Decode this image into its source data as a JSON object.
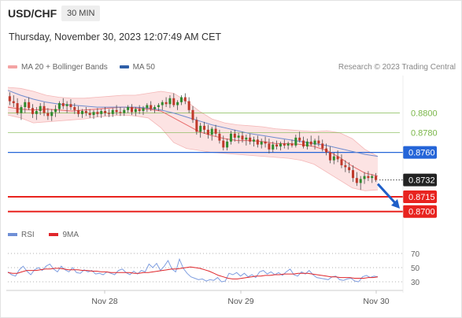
{
  "header": {
    "symbol": "USD/CHF",
    "timeframe": "30 MIN",
    "timestamp": "Thursday, November 30, 2023 12:07:49 AM CET"
  },
  "legend": {
    "items": [
      {
        "label": "MA 20 + Bollinger Bands",
        "color": "#f4a3a3"
      },
      {
        "label": "MA 50",
        "color": "#2f5fa8"
      }
    ],
    "credit": "Research © 2023 Trading Central"
  },
  "rsi_legend": {
    "items": [
      {
        "label": "RSI",
        "color": "#6f8fd6"
      },
      {
        "label": "9MA",
        "color": "#e0262b"
      }
    ]
  },
  "colors": {
    "up": "#2e8b2e",
    "down": "#c0392b",
    "wick": "#4a4a4a",
    "support": "#e8231f",
    "resistance_blue": "#2565d8",
    "resistance_green": "#7ab648",
    "current": "#222222",
    "bb_fill": "#fbdada",
    "bb_edge": "#f4b7b7",
    "ma20": "#e86b6b",
    "ma50": "#6e8ccf",
    "rsi": "#7f9ee0",
    "rsi_ma": "#e0262b",
    "arrow": "#1f5fc8",
    "grid": "#e9e9e9"
  },
  "chart_data": [
    {
      "type": "candlestick",
      "title": "USD/CHF",
      "ylim": [
        0.8683,
        0.8838
      ],
      "x_ticks": [
        "Nov 28",
        "Nov 29",
        "Nov 30"
      ],
      "levels": [
        {
          "value": 0.88,
          "label": "0.8800",
          "kind": "resistance",
          "color": "#7ab648"
        },
        {
          "value": 0.878,
          "label": "0.8780",
          "kind": "resistance",
          "color": "#7ab648"
        },
        {
          "value": 0.876,
          "label": "0.8760",
          "kind": "pivot",
          "color": "#2565d8"
        },
        {
          "value": 0.8732,
          "label": "0.8732",
          "kind": "current",
          "color": "#222222"
        },
        {
          "value": 0.8715,
          "label": "0.8715",
          "kind": "support",
          "color": "#e8231f"
        },
        {
          "value": 0.87,
          "label": "0.8700",
          "kind": "support",
          "color": "#e8231f"
        }
      ],
      "candles": [
        [
          0.8817,
          0.8821,
          0.8808,
          0.8812
        ],
        [
          0.8812,
          0.8818,
          0.8806,
          0.881
        ],
        [
          0.881,
          0.8815,
          0.8798,
          0.88
        ],
        [
          0.88,
          0.8808,
          0.8793,
          0.8806
        ],
        [
          0.8806,
          0.8814,
          0.88,
          0.8811
        ],
        [
          0.8811,
          0.8816,
          0.8803,
          0.8805
        ],
        [
          0.8805,
          0.8809,
          0.8795,
          0.8799
        ],
        [
          0.8799,
          0.8806,
          0.8793,
          0.8802
        ],
        [
          0.8802,
          0.881,
          0.8798,
          0.8807
        ],
        [
          0.8807,
          0.8811,
          0.8797,
          0.88
        ],
        [
          0.88,
          0.8805,
          0.8793,
          0.8797
        ],
        [
          0.8797,
          0.8804,
          0.8792,
          0.8801
        ],
        [
          0.8801,
          0.8808,
          0.8796,
          0.8804
        ],
        [
          0.8804,
          0.8812,
          0.88,
          0.881
        ],
        [
          0.881,
          0.8815,
          0.8804,
          0.8807
        ],
        [
          0.8807,
          0.8812,
          0.88,
          0.8809
        ],
        [
          0.8809,
          0.8814,
          0.8803,
          0.8806
        ],
        [
          0.8806,
          0.881,
          0.8799,
          0.8803
        ],
        [
          0.8803,
          0.8807,
          0.8796,
          0.8799
        ],
        [
          0.8799,
          0.8804,
          0.8795,
          0.8802
        ],
        [
          0.8802,
          0.8806,
          0.8797,
          0.88
        ],
        [
          0.88,
          0.8804,
          0.8795,
          0.8798
        ],
        [
          0.8798,
          0.8803,
          0.8794,
          0.8801
        ],
        [
          0.8801,
          0.8805,
          0.8796,
          0.8799
        ],
        [
          0.8799,
          0.8804,
          0.8795,
          0.8802
        ],
        [
          0.8802,
          0.8806,
          0.8797,
          0.88
        ],
        [
          0.88,
          0.8804,
          0.8796,
          0.8799
        ],
        [
          0.8799,
          0.8805,
          0.8796,
          0.8803
        ],
        [
          0.8803,
          0.8808,
          0.8798,
          0.8801
        ],
        [
          0.8801,
          0.8806,
          0.8797,
          0.88
        ],
        [
          0.88,
          0.8805,
          0.8797,
          0.8803
        ],
        [
          0.8803,
          0.8808,
          0.88,
          0.8806
        ],
        [
          0.8806,
          0.8809,
          0.8798,
          0.8801
        ],
        [
          0.8801,
          0.8806,
          0.8797,
          0.8804
        ],
        [
          0.8804,
          0.8808,
          0.8799,
          0.8802
        ],
        [
          0.8802,
          0.8807,
          0.8798,
          0.8805
        ],
        [
          0.8805,
          0.881,
          0.8801,
          0.8808
        ],
        [
          0.8808,
          0.8812,
          0.8802,
          0.8804
        ],
        [
          0.8804,
          0.8808,
          0.88,
          0.8806
        ],
        [
          0.8806,
          0.881,
          0.8802,
          0.8808
        ],
        [
          0.8808,
          0.8813,
          0.8803,
          0.8811
        ],
        [
          0.8811,
          0.8816,
          0.8806,
          0.8809
        ],
        [
          0.8809,
          0.8818,
          0.8805,
          0.8815
        ],
        [
          0.8815,
          0.882,
          0.8806,
          0.8808
        ],
        [
          0.8808,
          0.8813,
          0.8803,
          0.8811
        ],
        [
          0.8811,
          0.8818,
          0.8808,
          0.8816
        ],
        [
          0.8816,
          0.882,
          0.8809,
          0.8812
        ],
        [
          0.8812,
          0.8816,
          0.88,
          0.8803
        ],
        [
          0.8803,
          0.8807,
          0.879,
          0.8793
        ],
        [
          0.8793,
          0.8796,
          0.8778,
          0.8781
        ],
        [
          0.8781,
          0.879,
          0.8775,
          0.8787
        ],
        [
          0.8787,
          0.8791,
          0.8779,
          0.8783
        ],
        [
          0.8783,
          0.8788,
          0.8774,
          0.8778
        ],
        [
          0.8778,
          0.8786,
          0.8772,
          0.8784
        ],
        [
          0.8784,
          0.8788,
          0.8776,
          0.8779
        ],
        [
          0.8779,
          0.8783,
          0.8769,
          0.8772
        ],
        [
          0.8772,
          0.8777,
          0.8762,
          0.8765
        ],
        [
          0.8765,
          0.8774,
          0.8762,
          0.8771
        ],
        [
          0.8771,
          0.8782,
          0.8768,
          0.8779
        ],
        [
          0.8779,
          0.8783,
          0.8771,
          0.8775
        ],
        [
          0.8775,
          0.878,
          0.8769,
          0.8777
        ],
        [
          0.8777,
          0.8781,
          0.877,
          0.8773
        ],
        [
          0.8773,
          0.8778,
          0.8767,
          0.8775
        ],
        [
          0.8775,
          0.8779,
          0.8768,
          0.8771
        ],
        [
          0.8771,
          0.8776,
          0.8766,
          0.8773
        ],
        [
          0.8773,
          0.8777,
          0.8765,
          0.8768
        ],
        [
          0.8768,
          0.8774,
          0.8764,
          0.8771
        ],
        [
          0.8771,
          0.8776,
          0.8765,
          0.8769
        ],
        [
          0.8769,
          0.8774,
          0.8759,
          0.8763
        ],
        [
          0.8763,
          0.8771,
          0.876,
          0.8768
        ],
        [
          0.8768,
          0.8772,
          0.8763,
          0.8766
        ],
        [
          0.8766,
          0.8771,
          0.8762,
          0.8769
        ],
        [
          0.8769,
          0.8773,
          0.8764,
          0.8767
        ],
        [
          0.8767,
          0.8771,
          0.8763,
          0.8769
        ],
        [
          0.8769,
          0.8773,
          0.8765,
          0.8767
        ],
        [
          0.8767,
          0.8778,
          0.8765,
          0.8775
        ],
        [
          0.8775,
          0.8781,
          0.877,
          0.8772
        ],
        [
          0.8772,
          0.8776,
          0.8764,
          0.8766
        ],
        [
          0.8766,
          0.8774,
          0.8763,
          0.8771
        ],
        [
          0.8771,
          0.8777,
          0.8766,
          0.8768
        ],
        [
          0.8768,
          0.8774,
          0.8763,
          0.8772
        ],
        [
          0.8772,
          0.8777,
          0.8766,
          0.8769
        ],
        [
          0.8769,
          0.8773,
          0.8761,
          0.8764
        ],
        [
          0.8764,
          0.8769,
          0.8757,
          0.876
        ],
        [
          0.876,
          0.8766,
          0.8749,
          0.8752
        ],
        [
          0.8752,
          0.876,
          0.8748,
          0.8756
        ],
        [
          0.8756,
          0.8762,
          0.875,
          0.8753
        ],
        [
          0.8753,
          0.8758,
          0.8744,
          0.8747
        ],
        [
          0.8747,
          0.8752,
          0.874,
          0.8745
        ],
        [
          0.8745,
          0.875,
          0.8739,
          0.8742
        ],
        [
          0.8742,
          0.8747,
          0.873,
          0.8734
        ],
        [
          0.8734,
          0.874,
          0.8726,
          0.8729
        ],
        [
          0.8729,
          0.8736,
          0.8722,
          0.8733
        ],
        [
          0.8733,
          0.874,
          0.8728,
          0.8736
        ],
        [
          0.8736,
          0.8741,
          0.8731,
          0.8734
        ],
        [
          0.8734,
          0.8738,
          0.8729,
          0.8736
        ],
        [
          0.8736,
          0.8739,
          0.873,
          0.8732
        ]
      ],
      "ma20": [
        0.8806,
        0.8804,
        0.8803,
        0.8804,
        0.8803,
        0.8802,
        0.8803,
        0.8804,
        0.8805,
        0.8806,
        0.8805,
        0.8804,
        0.8802,
        0.8795,
        0.8788,
        0.8781,
        0.8777,
        0.8774,
        0.8772,
        0.8772,
        0.8771,
        0.8769,
        0.8769,
        0.8768,
        0.8766,
        0.8762,
        0.8755,
        0.8746,
        0.8739,
        0.8736
      ],
      "ma50": [
        0.8823,
        0.8818,
        0.8814,
        0.8811,
        0.8809,
        0.8808,
        0.8807,
        0.8806,
        0.8806,
        0.8806,
        0.8806,
        0.8805,
        0.8803,
        0.88,
        0.8796,
        0.8792,
        0.8788,
        0.8785,
        0.8782,
        0.8779,
        0.8777,
        0.8775,
        0.8773,
        0.8771,
        0.8769,
        0.8767,
        0.8764,
        0.8761,
        0.8758,
        0.8756
      ],
      "bb_upper": [
        0.8826,
        0.8825,
        0.8822,
        0.8818,
        0.8816,
        0.8815,
        0.8815,
        0.8816,
        0.8817,
        0.8818,
        0.8818,
        0.882,
        0.8822,
        0.882,
        0.8812,
        0.8802,
        0.8794,
        0.879,
        0.8788,
        0.8787,
        0.8786,
        0.8784,
        0.8783,
        0.8782,
        0.8781,
        0.8782,
        0.878,
        0.8774,
        0.8763,
        0.8756
      ],
      "bb_lower": [
        0.8798,
        0.8795,
        0.879,
        0.8791,
        0.8792,
        0.8793,
        0.8794,
        0.8796,
        0.8797,
        0.8798,
        0.8797,
        0.8795,
        0.8785,
        0.877,
        0.8764,
        0.8762,
        0.876,
        0.8759,
        0.8758,
        0.8757,
        0.8756,
        0.8755,
        0.8754,
        0.8752,
        0.8748,
        0.874,
        0.8732,
        0.8724,
        0.8721,
        0.8722
      ],
      "forecast_arrow": {
        "from": 0.8728,
        "to": 0.8703
      }
    },
    {
      "type": "line",
      "title": "RSI",
      "ylim": [
        20,
        80
      ],
      "y_ticks": [
        {
          "value": 70,
          "label": "70"
        },
        {
          "value": 50,
          "label": "50"
        },
        {
          "value": 30,
          "label": "30"
        }
      ],
      "series": [
        {
          "name": "RSI",
          "values": [
            44,
            40,
            38,
            47,
            52,
            45,
            40,
            47,
            50,
            46,
            52,
            55,
            48,
            44,
            52,
            47,
            44,
            50,
            43,
            42,
            47,
            44,
            46,
            41,
            42,
            40,
            44,
            42,
            40,
            46,
            48,
            43,
            40,
            45,
            41,
            46,
            44,
            55,
            50,
            56,
            46,
            52,
            60,
            48,
            44,
            62,
            49,
            42,
            37,
            35,
            33,
            34,
            31,
            33,
            32,
            36,
            30,
            31,
            42,
            40,
            43,
            38,
            42,
            37,
            40,
            36,
            44,
            46,
            41,
            44,
            40,
            43,
            39,
            44,
            48,
            40,
            38,
            44,
            41,
            46,
            40,
            36,
            35,
            34,
            33,
            37,
            38,
            33,
            32,
            34,
            35,
            31,
            30,
            37,
            39,
            36,
            38,
            37
          ]
        },
        {
          "name": "9MA",
          "values": [
            43,
            42,
            42,
            44,
            46,
            46,
            46,
            47,
            48,
            48,
            49,
            49,
            48,
            47,
            47,
            47,
            46,
            46,
            45,
            45,
            44,
            44,
            43,
            43,
            43,
            43,
            43,
            42,
            42,
            43,
            43,
            44,
            45,
            46,
            47,
            48,
            48,
            49,
            50,
            51,
            50,
            49,
            47,
            45,
            42,
            39,
            37,
            35,
            34,
            34,
            35,
            36,
            37,
            38,
            38,
            39,
            39,
            40,
            40,
            41,
            41,
            41,
            42,
            42,
            42,
            41,
            40,
            39,
            38,
            37,
            37,
            36,
            36,
            36,
            35,
            35,
            35,
            36,
            36,
            37
          ]
        }
      ]
    }
  ]
}
